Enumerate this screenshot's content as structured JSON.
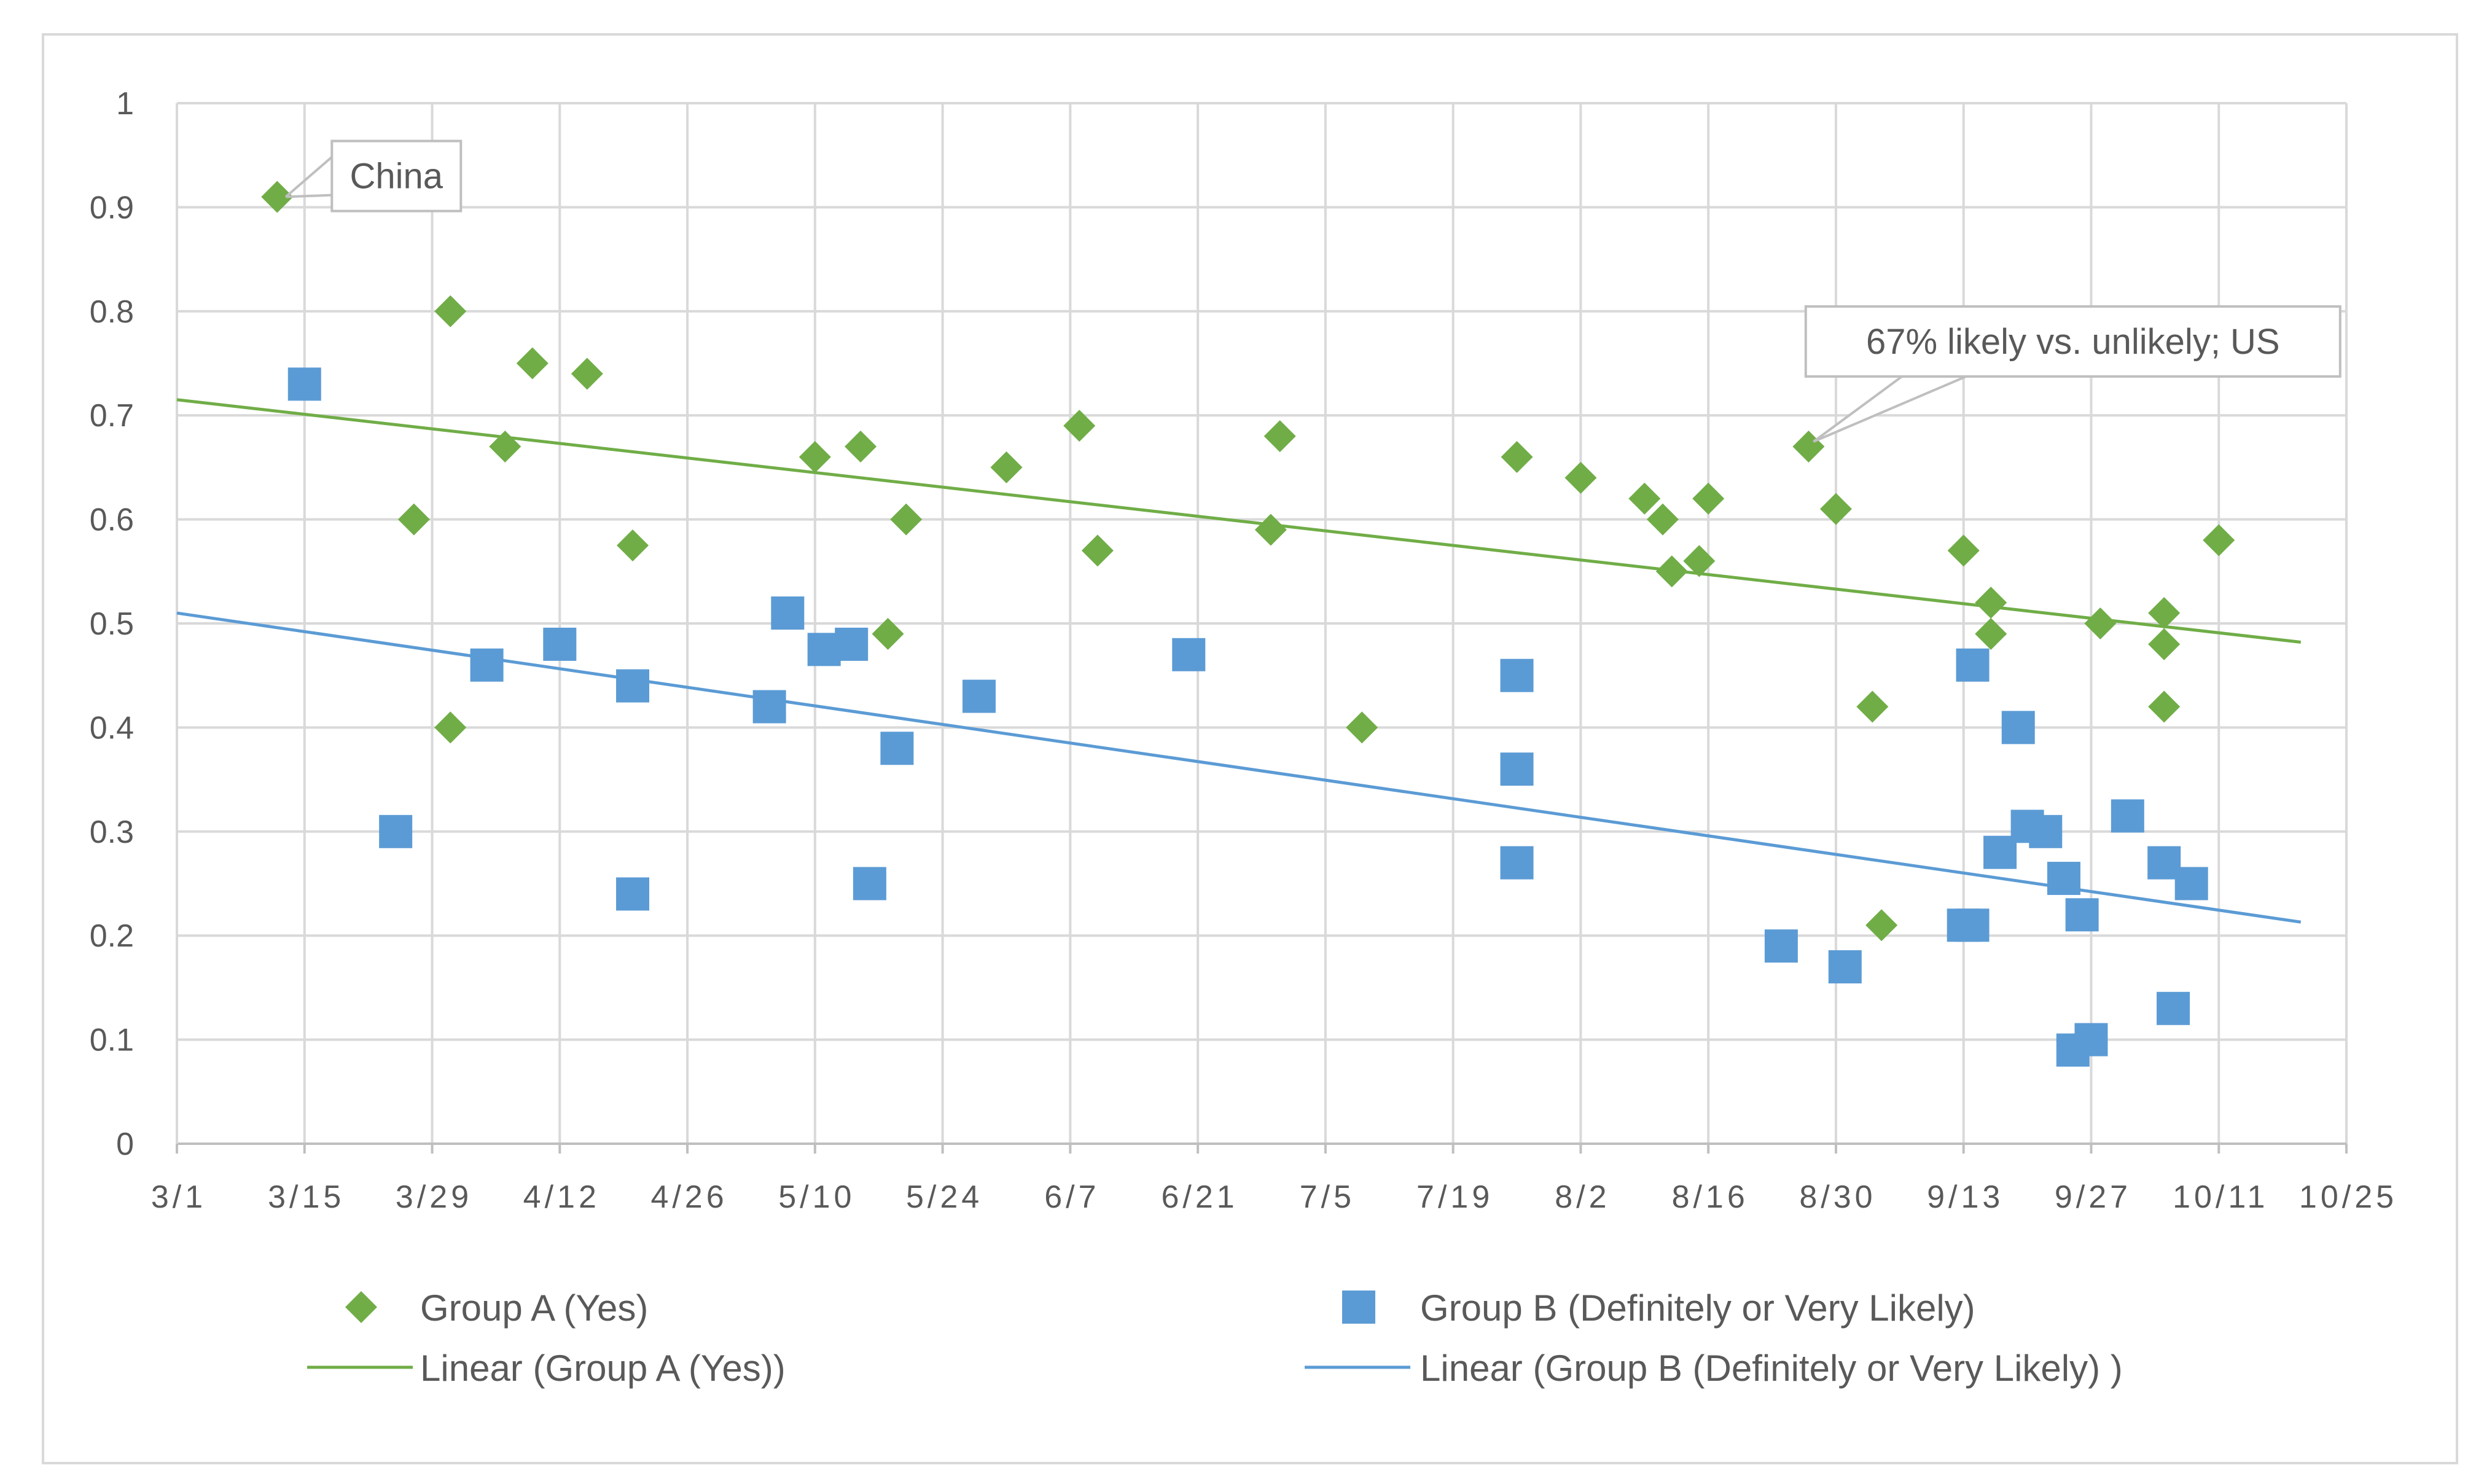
{
  "chart_data": {
    "type": "scatter",
    "title": "",
    "xlabel": "",
    "ylabel": "",
    "xlim_days": [
      0,
      238
    ],
    "ylim": [
      0,
      1
    ],
    "x_ticks": [
      {
        "day": 0,
        "label": "3/1"
      },
      {
        "day": 14,
        "label": "3/15"
      },
      {
        "day": 28,
        "label": "3/29"
      },
      {
        "day": 42,
        "label": "4/12"
      },
      {
        "day": 56,
        "label": "4/26"
      },
      {
        "day": 70,
        "label": "5/10"
      },
      {
        "day": 84,
        "label": "5/24"
      },
      {
        "day": 98,
        "label": "6/7"
      },
      {
        "day": 112,
        "label": "6/21"
      },
      {
        "day": 126,
        "label": "7/5"
      },
      {
        "day": 140,
        "label": "7/19"
      },
      {
        "day": 154,
        "label": "8/2"
      },
      {
        "day": 168,
        "label": "8/16"
      },
      {
        "day": 182,
        "label": "8/30"
      },
      {
        "day": 196,
        "label": "9/13"
      },
      {
        "day": 210,
        "label": "9/27"
      },
      {
        "day": 224,
        "label": "10/11"
      },
      {
        "day": 238,
        "label": "10/25"
      }
    ],
    "y_ticks": [
      {
        "value": 0,
        "label": "0"
      },
      {
        "value": 0.1,
        "label": "0.1"
      },
      {
        "value": 0.2,
        "label": "0.2"
      },
      {
        "value": 0.3,
        "label": "0.3"
      },
      {
        "value": 0.4,
        "label": "0.4"
      },
      {
        "value": 0.5,
        "label": "0.5"
      },
      {
        "value": 0.6,
        "label": "0.6"
      },
      {
        "value": 0.7,
        "label": "0.7"
      },
      {
        "value": 0.8,
        "label": "0.8"
      },
      {
        "value": 0.9,
        "label": "0.9"
      },
      {
        "value": 1,
        "label": "1"
      }
    ],
    "grid": true,
    "series": [
      {
        "name": "Group A (Yes)",
        "marker": "diamond",
        "color": "#70AD47",
        "points": [
          [
            11,
            0.91
          ],
          [
            26,
            0.6
          ],
          [
            30,
            0.8
          ],
          [
            30,
            0.4
          ],
          [
            36,
            0.67
          ],
          [
            39,
            0.75
          ],
          [
            45,
            0.74
          ],
          [
            50,
            0.575
          ],
          [
            70,
            0.66
          ],
          [
            75,
            0.67
          ],
          [
            78,
            0.49
          ],
          [
            80,
            0.6
          ],
          [
            91,
            0.65
          ],
          [
            99,
            0.69
          ],
          [
            101,
            0.57
          ],
          [
            120,
            0.59
          ],
          [
            121,
            0.68
          ],
          [
            130,
            0.4
          ],
          [
            147,
            0.66
          ],
          [
            154,
            0.64
          ],
          [
            161,
            0.62
          ],
          [
            163,
            0.6
          ],
          [
            164,
            0.55
          ],
          [
            167,
            0.56
          ],
          [
            168,
            0.62
          ],
          [
            179,
            0.67
          ],
          [
            182,
            0.61
          ],
          [
            186,
            0.42
          ],
          [
            187,
            0.21
          ],
          [
            196,
            0.57
          ],
          [
            199,
            0.52
          ],
          [
            199,
            0.49
          ],
          [
            211,
            0.5
          ],
          [
            218,
            0.51
          ],
          [
            218,
            0.48
          ],
          [
            218,
            0.42
          ],
          [
            224,
            0.58
          ]
        ]
      },
      {
        "name": "Group B (Definitely or Very Likely)",
        "marker": "square",
        "color": "#5B9BD5",
        "points": [
          [
            14,
            0.73
          ],
          [
            24,
            0.3
          ],
          [
            34,
            0.46
          ],
          [
            42,
            0.48
          ],
          [
            50,
            0.44
          ],
          [
            50,
            0.24
          ],
          [
            65,
            0.42
          ],
          [
            67,
            0.51
          ],
          [
            71,
            0.475
          ],
          [
            74,
            0.48
          ],
          [
            76,
            0.25
          ],
          [
            79,
            0.38
          ],
          [
            88,
            0.43
          ],
          [
            111,
            0.47
          ],
          [
            147,
            0.45
          ],
          [
            147,
            0.36
          ],
          [
            147,
            0.27
          ],
          [
            176,
            0.19
          ],
          [
            183,
            0.17
          ],
          [
            196,
            0.21
          ],
          [
            197,
            0.21
          ],
          [
            197,
            0.46
          ],
          [
            200,
            0.28
          ],
          [
            202,
            0.4
          ],
          [
            203,
            0.305
          ],
          [
            205,
            0.3
          ],
          [
            207,
            0.255
          ],
          [
            208,
            0.09
          ],
          [
            209,
            0.22
          ],
          [
            210,
            0.1
          ],
          [
            214,
            0.315
          ],
          [
            218,
            0.27
          ],
          [
            219,
            0.13
          ],
          [
            221,
            0.25
          ]
        ]
      }
    ],
    "trendlines": [
      {
        "name": "Linear (Group A (Yes))",
        "color": "#70AD47",
        "x": [
          0,
          233
        ],
        "y": [
          0.715,
          0.482
        ]
      },
      {
        "name": "Linear (Group B (Definitely or Very Likely) )",
        "color": "#5B9BD5",
        "x": [
          0,
          233
        ],
        "y": [
          0.51,
          0.213
        ]
      }
    ],
    "annotations": [
      {
        "text": "China",
        "target": [
          11,
          0.91
        ],
        "label_at": [
          17,
          0.93
        ],
        "anchor": "left"
      },
      {
        "text": "67% likely vs. unlikely; US",
        "target": [
          179,
          0.67
        ],
        "label_at": [
          208,
          0.771
        ],
        "anchor": "middle"
      }
    ],
    "legend": {
      "position": "bottom",
      "entries": [
        {
          "label": "Group A (Yes)",
          "kind": "diamond",
          "color": "#70AD47"
        },
        {
          "label": "Group B (Definitely or Very Likely)",
          "kind": "square",
          "color": "#5B9BD5"
        },
        {
          "label": "Linear (Group A (Yes))",
          "kind": "line",
          "color": "#70AD47"
        },
        {
          "label": "Linear (Group B (Definitely or Very Likely) )",
          "kind": "line",
          "color": "#5B9BD5"
        }
      ]
    }
  }
}
